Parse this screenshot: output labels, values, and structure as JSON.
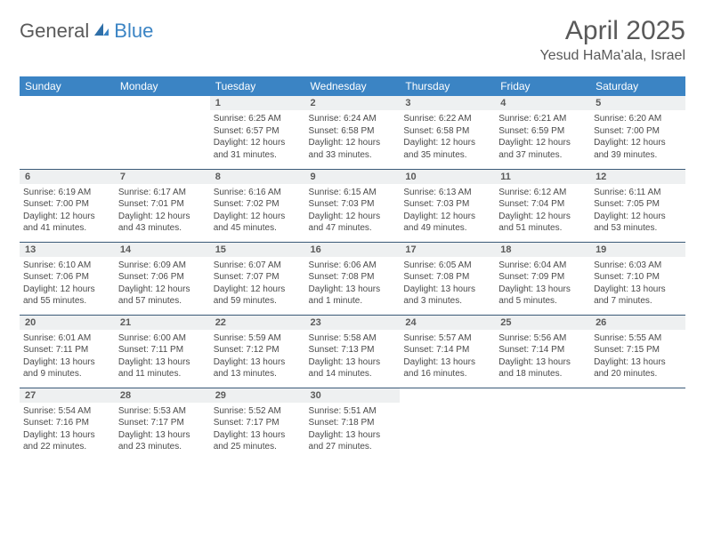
{
  "logo": {
    "part1": "General",
    "part2": "Blue"
  },
  "title": "April 2025",
  "location": "Yesud HaMa'ala, Israel",
  "day_headers": [
    "Sunday",
    "Monday",
    "Tuesday",
    "Wednesday",
    "Thursday",
    "Friday",
    "Saturday"
  ],
  "colors": {
    "header_bg": "#3b84c4",
    "header_text": "#ffffff",
    "daynum_bg": "#eef0f1",
    "row_border": "#3b5a78",
    "text": "#4a4a4a",
    "title_text": "#595959",
    "logo_gray": "#5a5a5a",
    "logo_blue": "#3b84c4"
  },
  "weeks": [
    [
      {
        "blank": true
      },
      {
        "blank": true
      },
      {
        "day": "1",
        "sunrise": "6:25 AM",
        "sunset": "6:57 PM",
        "daylight": "12 hours and 31 minutes."
      },
      {
        "day": "2",
        "sunrise": "6:24 AM",
        "sunset": "6:58 PM",
        "daylight": "12 hours and 33 minutes."
      },
      {
        "day": "3",
        "sunrise": "6:22 AM",
        "sunset": "6:58 PM",
        "daylight": "12 hours and 35 minutes."
      },
      {
        "day": "4",
        "sunrise": "6:21 AM",
        "sunset": "6:59 PM",
        "daylight": "12 hours and 37 minutes."
      },
      {
        "day": "5",
        "sunrise": "6:20 AM",
        "sunset": "7:00 PM",
        "daylight": "12 hours and 39 minutes."
      }
    ],
    [
      {
        "day": "6",
        "sunrise": "6:19 AM",
        "sunset": "7:00 PM",
        "daylight": "12 hours and 41 minutes."
      },
      {
        "day": "7",
        "sunrise": "6:17 AM",
        "sunset": "7:01 PM",
        "daylight": "12 hours and 43 minutes."
      },
      {
        "day": "8",
        "sunrise": "6:16 AM",
        "sunset": "7:02 PM",
        "daylight": "12 hours and 45 minutes."
      },
      {
        "day": "9",
        "sunrise": "6:15 AM",
        "sunset": "7:03 PM",
        "daylight": "12 hours and 47 minutes."
      },
      {
        "day": "10",
        "sunrise": "6:13 AM",
        "sunset": "7:03 PM",
        "daylight": "12 hours and 49 minutes."
      },
      {
        "day": "11",
        "sunrise": "6:12 AM",
        "sunset": "7:04 PM",
        "daylight": "12 hours and 51 minutes."
      },
      {
        "day": "12",
        "sunrise": "6:11 AM",
        "sunset": "7:05 PM",
        "daylight": "12 hours and 53 minutes."
      }
    ],
    [
      {
        "day": "13",
        "sunrise": "6:10 AM",
        "sunset": "7:06 PM",
        "daylight": "12 hours and 55 minutes."
      },
      {
        "day": "14",
        "sunrise": "6:09 AM",
        "sunset": "7:06 PM",
        "daylight": "12 hours and 57 minutes."
      },
      {
        "day": "15",
        "sunrise": "6:07 AM",
        "sunset": "7:07 PM",
        "daylight": "12 hours and 59 minutes."
      },
      {
        "day": "16",
        "sunrise": "6:06 AM",
        "sunset": "7:08 PM",
        "daylight": "13 hours and 1 minute."
      },
      {
        "day": "17",
        "sunrise": "6:05 AM",
        "sunset": "7:08 PM",
        "daylight": "13 hours and 3 minutes."
      },
      {
        "day": "18",
        "sunrise": "6:04 AM",
        "sunset": "7:09 PM",
        "daylight": "13 hours and 5 minutes."
      },
      {
        "day": "19",
        "sunrise": "6:03 AM",
        "sunset": "7:10 PM",
        "daylight": "13 hours and 7 minutes."
      }
    ],
    [
      {
        "day": "20",
        "sunrise": "6:01 AM",
        "sunset": "7:11 PM",
        "daylight": "13 hours and 9 minutes."
      },
      {
        "day": "21",
        "sunrise": "6:00 AM",
        "sunset": "7:11 PM",
        "daylight": "13 hours and 11 minutes."
      },
      {
        "day": "22",
        "sunrise": "5:59 AM",
        "sunset": "7:12 PM",
        "daylight": "13 hours and 13 minutes."
      },
      {
        "day": "23",
        "sunrise": "5:58 AM",
        "sunset": "7:13 PM",
        "daylight": "13 hours and 14 minutes."
      },
      {
        "day": "24",
        "sunrise": "5:57 AM",
        "sunset": "7:14 PM",
        "daylight": "13 hours and 16 minutes."
      },
      {
        "day": "25",
        "sunrise": "5:56 AM",
        "sunset": "7:14 PM",
        "daylight": "13 hours and 18 minutes."
      },
      {
        "day": "26",
        "sunrise": "5:55 AM",
        "sunset": "7:15 PM",
        "daylight": "13 hours and 20 minutes."
      }
    ],
    [
      {
        "day": "27",
        "sunrise": "5:54 AM",
        "sunset": "7:16 PM",
        "daylight": "13 hours and 22 minutes."
      },
      {
        "day": "28",
        "sunrise": "5:53 AM",
        "sunset": "7:17 PM",
        "daylight": "13 hours and 23 minutes."
      },
      {
        "day": "29",
        "sunrise": "5:52 AM",
        "sunset": "7:17 PM",
        "daylight": "13 hours and 25 minutes."
      },
      {
        "day": "30",
        "sunrise": "5:51 AM",
        "sunset": "7:18 PM",
        "daylight": "13 hours and 27 minutes."
      },
      {
        "blank": true
      },
      {
        "blank": true
      },
      {
        "blank": true
      }
    ]
  ],
  "labels": {
    "sunrise": "Sunrise:",
    "sunset": "Sunset:",
    "daylight": "Daylight:"
  }
}
